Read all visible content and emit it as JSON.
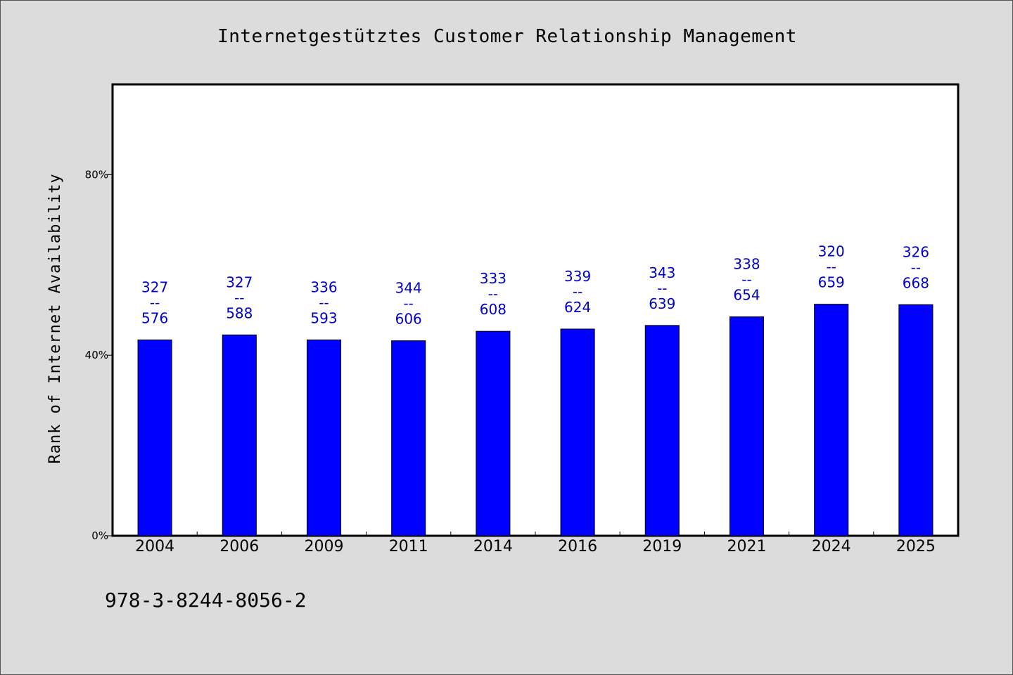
{
  "chart_data": {
    "type": "bar",
    "title": "Internetgestütztes Customer Relationship Management",
    "xlabel": "",
    "ylabel": "Rank of Internet Availability",
    "categories": [
      "2004",
      "2006",
      "2009",
      "2011",
      "2014",
      "2016",
      "2019",
      "2021",
      "2024",
      "2025"
    ],
    "values": [
      43.4,
      44.5,
      43.4,
      43.2,
      45.3,
      45.8,
      46.6,
      48.5,
      51.3,
      51.2
    ],
    "point_labels": [
      [
        "327",
        "--",
        "576"
      ],
      [
        "327",
        "--",
        "588"
      ],
      [
        "336",
        "--",
        "593"
      ],
      [
        "344",
        "--",
        "606"
      ],
      [
        "333",
        "--",
        "608"
      ],
      [
        "339",
        "--",
        "624"
      ],
      [
        "343",
        "--",
        "639"
      ],
      [
        "338",
        "--",
        "654"
      ],
      [
        "320",
        "--",
        "659"
      ],
      [
        "326",
        "--",
        "668"
      ]
    ],
    "yticks": [
      0,
      40,
      80
    ],
    "ytick_labels": [
      "0%",
      "40%",
      "80%"
    ],
    "ylim": [
      0,
      100
    ],
    "grid": false,
    "bar_color": "#0000ff",
    "label_color": "#0000cc"
  },
  "footer": {
    "code": "978-3-8244-8056-2"
  }
}
